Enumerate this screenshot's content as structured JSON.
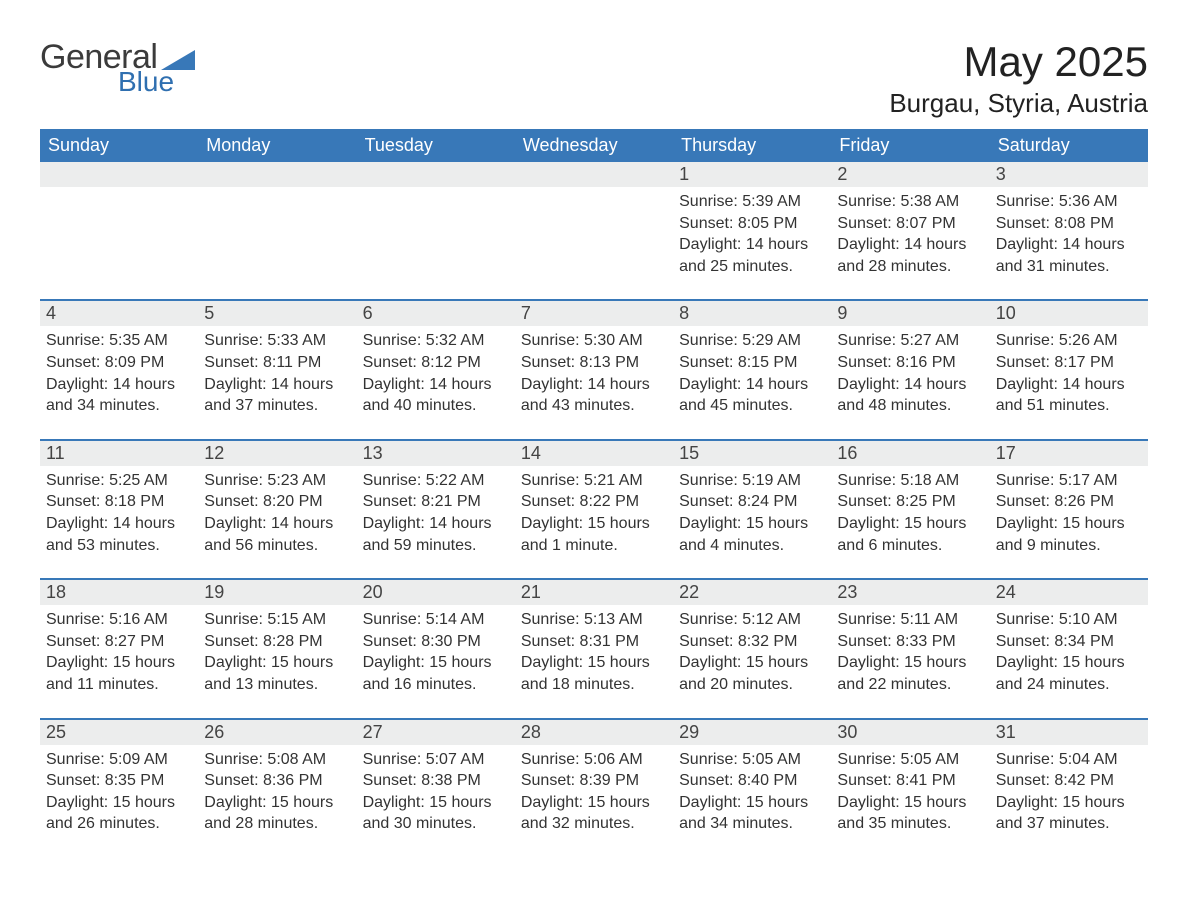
{
  "brand": {
    "word1": "General",
    "word2": "Blue",
    "accent_color": "#3878b8"
  },
  "title": "May 2025",
  "location": "Burgau, Styria, Austria",
  "colors": {
    "header_bg": "#3878b8",
    "header_text": "#ffffff",
    "daynum_bg": "#eceded",
    "row_divider": "#3878b8",
    "body_text": "#333333",
    "page_bg": "#ffffff"
  },
  "typography": {
    "title_fontsize": 42,
    "location_fontsize": 26,
    "header_fontsize": 18,
    "cell_fontsize": 16,
    "font_family": "Segoe UI, Arial, sans-serif"
  },
  "calendar": {
    "type": "table",
    "columns": [
      "Sunday",
      "Monday",
      "Tuesday",
      "Wednesday",
      "Thursday",
      "Friday",
      "Saturday"
    ],
    "weeks": [
      [
        null,
        null,
        null,
        null,
        {
          "day": 1,
          "sunrise": "5:39 AM",
          "sunset": "8:05 PM",
          "daylight": "14 hours and 25 minutes."
        },
        {
          "day": 2,
          "sunrise": "5:38 AM",
          "sunset": "8:07 PM",
          "daylight": "14 hours and 28 minutes."
        },
        {
          "day": 3,
          "sunrise": "5:36 AM",
          "sunset": "8:08 PM",
          "daylight": "14 hours and 31 minutes."
        }
      ],
      [
        {
          "day": 4,
          "sunrise": "5:35 AM",
          "sunset": "8:09 PM",
          "daylight": "14 hours and 34 minutes."
        },
        {
          "day": 5,
          "sunrise": "5:33 AM",
          "sunset": "8:11 PM",
          "daylight": "14 hours and 37 minutes."
        },
        {
          "day": 6,
          "sunrise": "5:32 AM",
          "sunset": "8:12 PM",
          "daylight": "14 hours and 40 minutes."
        },
        {
          "day": 7,
          "sunrise": "5:30 AM",
          "sunset": "8:13 PM",
          "daylight": "14 hours and 43 minutes."
        },
        {
          "day": 8,
          "sunrise": "5:29 AM",
          "sunset": "8:15 PM",
          "daylight": "14 hours and 45 minutes."
        },
        {
          "day": 9,
          "sunrise": "5:27 AM",
          "sunset": "8:16 PM",
          "daylight": "14 hours and 48 minutes."
        },
        {
          "day": 10,
          "sunrise": "5:26 AM",
          "sunset": "8:17 PM",
          "daylight": "14 hours and 51 minutes."
        }
      ],
      [
        {
          "day": 11,
          "sunrise": "5:25 AM",
          "sunset": "8:18 PM",
          "daylight": "14 hours and 53 minutes."
        },
        {
          "day": 12,
          "sunrise": "5:23 AM",
          "sunset": "8:20 PM",
          "daylight": "14 hours and 56 minutes."
        },
        {
          "day": 13,
          "sunrise": "5:22 AM",
          "sunset": "8:21 PM",
          "daylight": "14 hours and 59 minutes."
        },
        {
          "day": 14,
          "sunrise": "5:21 AM",
          "sunset": "8:22 PM",
          "daylight": "15 hours and 1 minute."
        },
        {
          "day": 15,
          "sunrise": "5:19 AM",
          "sunset": "8:24 PM",
          "daylight": "15 hours and 4 minutes."
        },
        {
          "day": 16,
          "sunrise": "5:18 AM",
          "sunset": "8:25 PM",
          "daylight": "15 hours and 6 minutes."
        },
        {
          "day": 17,
          "sunrise": "5:17 AM",
          "sunset": "8:26 PM",
          "daylight": "15 hours and 9 minutes."
        }
      ],
      [
        {
          "day": 18,
          "sunrise": "5:16 AM",
          "sunset": "8:27 PM",
          "daylight": "15 hours and 11 minutes."
        },
        {
          "day": 19,
          "sunrise": "5:15 AM",
          "sunset": "8:28 PM",
          "daylight": "15 hours and 13 minutes."
        },
        {
          "day": 20,
          "sunrise": "5:14 AM",
          "sunset": "8:30 PM",
          "daylight": "15 hours and 16 minutes."
        },
        {
          "day": 21,
          "sunrise": "5:13 AM",
          "sunset": "8:31 PM",
          "daylight": "15 hours and 18 minutes."
        },
        {
          "day": 22,
          "sunrise": "5:12 AM",
          "sunset": "8:32 PM",
          "daylight": "15 hours and 20 minutes."
        },
        {
          "day": 23,
          "sunrise": "5:11 AM",
          "sunset": "8:33 PM",
          "daylight": "15 hours and 22 minutes."
        },
        {
          "day": 24,
          "sunrise": "5:10 AM",
          "sunset": "8:34 PM",
          "daylight": "15 hours and 24 minutes."
        }
      ],
      [
        {
          "day": 25,
          "sunrise": "5:09 AM",
          "sunset": "8:35 PM",
          "daylight": "15 hours and 26 minutes."
        },
        {
          "day": 26,
          "sunrise": "5:08 AM",
          "sunset": "8:36 PM",
          "daylight": "15 hours and 28 minutes."
        },
        {
          "day": 27,
          "sunrise": "5:07 AM",
          "sunset": "8:38 PM",
          "daylight": "15 hours and 30 minutes."
        },
        {
          "day": 28,
          "sunrise": "5:06 AM",
          "sunset": "8:39 PM",
          "daylight": "15 hours and 32 minutes."
        },
        {
          "day": 29,
          "sunrise": "5:05 AM",
          "sunset": "8:40 PM",
          "daylight": "15 hours and 34 minutes."
        },
        {
          "day": 30,
          "sunrise": "5:05 AM",
          "sunset": "8:41 PM",
          "daylight": "15 hours and 35 minutes."
        },
        {
          "day": 31,
          "sunrise": "5:04 AM",
          "sunset": "8:42 PM",
          "daylight": "15 hours and 37 minutes."
        }
      ]
    ],
    "labels": {
      "sunrise": "Sunrise:",
      "sunset": "Sunset:",
      "daylight": "Daylight:"
    }
  }
}
